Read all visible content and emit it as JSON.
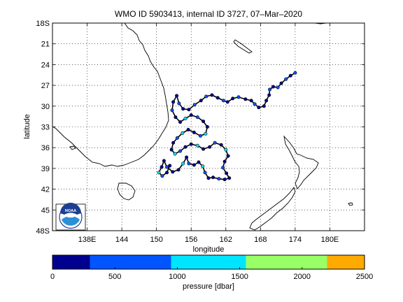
{
  "title": "WMO ID 5903413, internal ID 3727, 07–Mar–2020",
  "map": {
    "xlabel": "longitude",
    "ylabel": "latitude",
    "xlim": [
      132,
      186
    ],
    "ylim": [
      48,
      18
    ],
    "lon_ticks": [
      {
        "value": 138,
        "label": "138E"
      },
      {
        "value": 144,
        "label": "144"
      },
      {
        "value": 150,
        "label": "150"
      },
      {
        "value": 156,
        "label": "156"
      },
      {
        "value": 162,
        "label": "162"
      },
      {
        "value": 168,
        "label": "168"
      },
      {
        "value": 174,
        "label": "174"
      },
      {
        "value": 180,
        "label": "180E"
      }
    ],
    "lat_ticks": [
      {
        "value": 18,
        "label": "18S"
      },
      {
        "value": 21,
        "label": "21"
      },
      {
        "value": 24,
        "label": "24"
      },
      {
        "value": 27,
        "label": "27"
      },
      {
        "value": 30,
        "label": "30"
      },
      {
        "value": 33,
        "label": "33"
      },
      {
        "value": 36,
        "label": "36"
      },
      {
        "value": 39,
        "label": "39"
      },
      {
        "value": 42,
        "label": "42"
      },
      {
        "value": 45,
        "label": "45"
      },
      {
        "value": 48,
        "label": "48S"
      }
    ],
    "grid": "dotted",
    "track_color": "#000000",
    "coast_color": "#000000"
  },
  "logo": {
    "text": "NOAA",
    "icon": "noaa-logo"
  },
  "colorbar": {
    "label": "pressure [dbar]",
    "ticks": [
      {
        "value": 0,
        "label": "0"
      },
      {
        "value": 500,
        "label": "500"
      },
      {
        "value": 1000,
        "label": "1000"
      },
      {
        "value": 1500,
        "label": "1500"
      },
      {
        "value": 2000,
        "label": "2000"
      },
      {
        "value": 2500,
        "label": "2500"
      }
    ],
    "range": [
      0,
      2500
    ],
    "bands": [
      {
        "from": 0,
        "to": 300,
        "color": "#00008f"
      },
      {
        "from": 300,
        "to": 950,
        "color": "#0055ff"
      },
      {
        "from": 950,
        "to": 1550,
        "color": "#00e5ff"
      },
      {
        "from": 1550,
        "to": 2200,
        "color": "#99ff66"
      },
      {
        "from": 2200,
        "to": 2500,
        "color": "#ffaa00"
      }
    ]
  },
  "chart_data": {
    "type": "scatter",
    "title": "WMO ID 5903413, internal ID 3727, 07–Mar–2020",
    "xlabel": "longitude",
    "ylabel": "latitude",
    "xlim": [
      132,
      186
    ],
    "ylim": [
      48,
      18
    ],
    "series": [
      {
        "points": [
          [
            174.0,
            25.2,
            400
          ],
          [
            173.2,
            25.6,
            200
          ],
          [
            172.4,
            26.1,
            300
          ],
          [
            171.6,
            26.7,
            150
          ],
          [
            171.0,
            27.3,
            400
          ],
          [
            170.2,
            27.2,
            200
          ],
          [
            169.6,
            27.6,
            300
          ],
          [
            169.5,
            28.4,
            100
          ],
          [
            169.0,
            29.2,
            200
          ],
          [
            168.6,
            30.0,
            100
          ],
          [
            167.7,
            30.2,
            200
          ],
          [
            167.0,
            29.7,
            300
          ],
          [
            166.4,
            29.2,
            100
          ],
          [
            165.4,
            29.0,
            200
          ],
          [
            164.2,
            28.7,
            400
          ],
          [
            163.2,
            28.9,
            100
          ],
          [
            162.3,
            29.4,
            200
          ],
          [
            161.6,
            29.2,
            300
          ],
          [
            160.6,
            28.8,
            100
          ],
          [
            159.6,
            28.4,
            200
          ],
          [
            158.6,
            28.6,
            500
          ],
          [
            157.7,
            29.2,
            100
          ],
          [
            156.6,
            29.8,
            300
          ],
          [
            155.6,
            30.5,
            200
          ],
          [
            154.6,
            30.4,
            100
          ],
          [
            153.9,
            29.6,
            300
          ],
          [
            153.5,
            28.5,
            200
          ],
          [
            152.9,
            29.4,
            100
          ],
          [
            152.7,
            30.6,
            300
          ],
          [
            153.3,
            31.6,
            200
          ],
          [
            154.1,
            32.3,
            100
          ],
          [
            155.0,
            31.8,
            1200
          ],
          [
            156.0,
            31.3,
            200
          ],
          [
            157.1,
            31.6,
            300
          ],
          [
            158.1,
            32.2,
            100
          ],
          [
            158.8,
            33.0,
            200
          ],
          [
            158.5,
            34.0,
            1200
          ],
          [
            157.6,
            34.3,
            300
          ],
          [
            156.5,
            33.8,
            100
          ],
          [
            155.5,
            33.4,
            200
          ],
          [
            154.5,
            33.9,
            1000
          ],
          [
            153.6,
            34.6,
            300
          ],
          [
            152.9,
            35.3,
            100
          ],
          [
            152.6,
            36.3,
            200
          ],
          [
            153.2,
            36.9,
            1100
          ],
          [
            154.1,
            36.5,
            300
          ],
          [
            155.0,
            35.9,
            100
          ],
          [
            156.0,
            35.5,
            200
          ],
          [
            157.1,
            35.7,
            1300
          ],
          [
            158.1,
            36.2,
            200
          ],
          [
            159.2,
            35.9,
            100
          ],
          [
            160.1,
            35.3,
            300
          ],
          [
            161.2,
            35.6,
            200
          ],
          [
            162.0,
            36.3,
            1200
          ],
          [
            162.4,
            37.2,
            100
          ],
          [
            161.8,
            38.0,
            200
          ],
          [
            161.5,
            38.9,
            300
          ],
          [
            162.1,
            39.7,
            100
          ],
          [
            162.6,
            40.4,
            200
          ],
          [
            161.8,
            40.6,
            100
          ],
          [
            160.8,
            40.5,
            300
          ],
          [
            159.8,
            40.3,
            200
          ],
          [
            159.0,
            40.4,
            100
          ],
          [
            158.4,
            39.6,
            300
          ],
          [
            158.0,
            38.7,
            1000
          ],
          [
            157.3,
            38.1,
            200
          ],
          [
            156.5,
            38.5,
            100
          ],
          [
            155.6,
            38.3,
            300
          ],
          [
            155.2,
            37.4,
            200
          ],
          [
            154.6,
            38.3,
            1200
          ],
          [
            153.8,
            39.2,
            100
          ],
          [
            152.8,
            39.5,
            200
          ],
          [
            151.8,
            38.8,
            300
          ],
          [
            151.3,
            37.9,
            100
          ],
          [
            150.9,
            38.8,
            200
          ],
          [
            150.4,
            39.6,
            1100
          ],
          [
            151.0,
            40.1,
            300
          ],
          [
            151.8,
            39.6,
            100
          ],
          [
            152.3,
            38.6,
            200
          ]
        ],
        "values_key": "pressure [dbar]"
      }
    ]
  }
}
